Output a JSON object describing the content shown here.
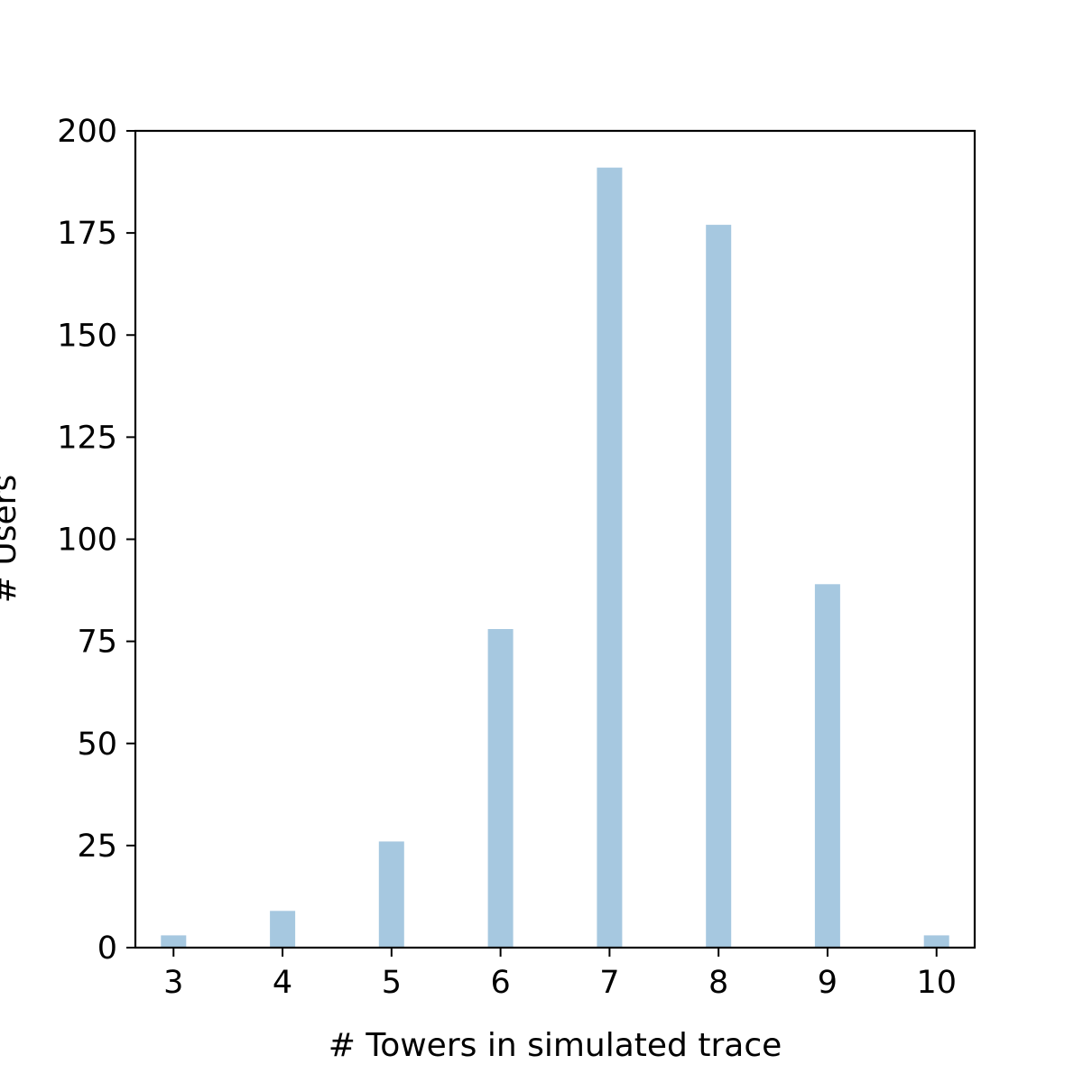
{
  "chart_data": {
    "type": "bar",
    "title": "",
    "xlabel": "# Towers in simulated trace",
    "ylabel": "# Users",
    "x": [
      3,
      4,
      5,
      6,
      7,
      8,
      9,
      10
    ],
    "values": [
      3,
      9,
      26,
      78,
      191,
      177,
      89,
      3
    ],
    "xlim": [
      2.65,
      10.35
    ],
    "ylim": [
      0,
      200
    ],
    "xticks": [
      "3",
      "4",
      "5",
      "6",
      "7",
      "8",
      "9",
      "10"
    ],
    "yticks": [
      "0",
      "25",
      "50",
      "75",
      "100",
      "125",
      "150",
      "175",
      "200"
    ],
    "grid": false,
    "legend": "none",
    "bar_color": "#a6c8e0",
    "axis_color": "#000000"
  }
}
